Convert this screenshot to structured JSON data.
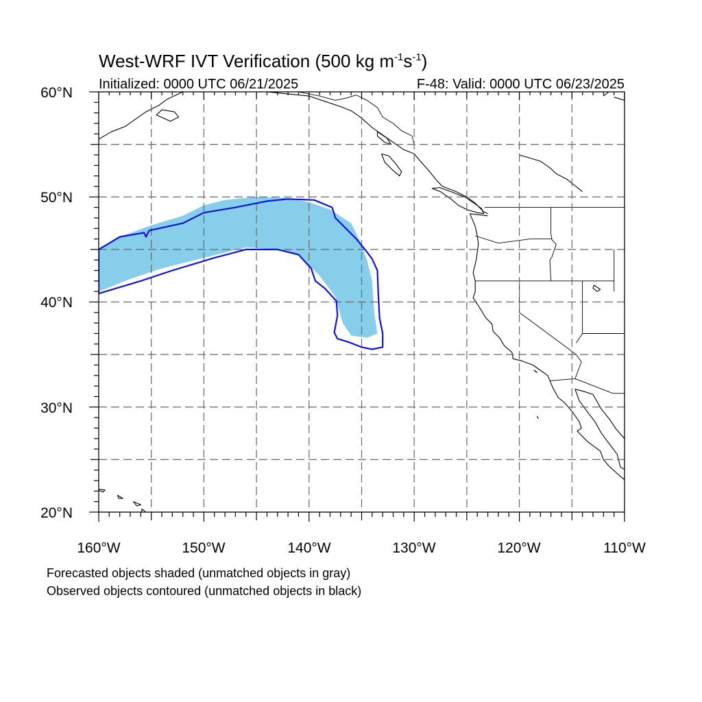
{
  "title": {
    "main": "West-WRF IVT Verification (500 kg m",
    "sup1": "-1",
    "mid": "s",
    "sup2": "-1",
    "end": ")"
  },
  "initialized": "Initialized: 0000 UTC 06/21/2025",
  "valid": "F-48: Valid: 0000 UTC 06/23/2025",
  "lat_labels": [
    "60°N",
    "50°N",
    "40°N",
    "30°N",
    "20°N"
  ],
  "lon_labels": [
    "160°W",
    "150°W",
    "140°W",
    "130°W",
    "120°W",
    "110°W"
  ],
  "map_extent": {
    "lon": [
      -160,
      -110
    ],
    "lat": [
      20,
      60
    ],
    "major_grid_deg": 5
  },
  "notes": [
    "Forecasted objects shaded (unmatched objects in gray)",
    "Observed objects contoured (unmatched objects in black)"
  ],
  "colors": {
    "forecast_fill": "#87ceeb",
    "observed_contour": "#1010e0",
    "coastline": "#000000",
    "grid": "#666666"
  },
  "forecast_object": [
    [
      -160,
      45
    ],
    [
      -158,
      46.2
    ],
    [
      -155,
      47.3
    ],
    [
      -152,
      48.2
    ],
    [
      -150,
      49.2
    ],
    [
      -148,
      49.7
    ],
    [
      -145,
      50
    ],
    [
      -142,
      49.9
    ],
    [
      -140,
      49.5
    ],
    [
      -138,
      48.8
    ],
    [
      -136,
      47.5
    ],
    [
      -135,
      45.5
    ],
    [
      -134.5,
      44
    ],
    [
      -134,
      42
    ],
    [
      -133.8,
      39
    ],
    [
      -133.5,
      37
    ],
    [
      -134.5,
      36.6
    ],
    [
      -136,
      36.8
    ],
    [
      -136.8,
      38
    ],
    [
      -137.5,
      40.5
    ],
    [
      -139,
      42.5
    ],
    [
      -141,
      44.5
    ],
    [
      -143,
      45
    ],
    [
      -146,
      45.2
    ],
    [
      -150,
      44.2
    ],
    [
      -154,
      43.2
    ],
    [
      -157,
      42.2
    ],
    [
      -160,
      41
    ]
  ],
  "observed_object": [
    [
      -160,
      45
    ],
    [
      -158,
      46.2
    ],
    [
      -155.7,
      46.6
    ],
    [
      -155.5,
      46.2
    ],
    [
      -155.2,
      46.8
    ],
    [
      -152,
      47.5
    ],
    [
      -150,
      48.5
    ],
    [
      -147,
      49
    ],
    [
      -144,
      49.6
    ],
    [
      -142,
      49.8
    ],
    [
      -139.5,
      49.7
    ],
    [
      -137.8,
      49
    ],
    [
      -137.5,
      48
    ],
    [
      -136.5,
      47
    ],
    [
      -135.5,
      46
    ],
    [
      -134.6,
      44.9
    ],
    [
      -134,
      44.1
    ],
    [
      -133.5,
      43
    ],
    [
      -133.4,
      40.5
    ],
    [
      -133.3,
      38.5
    ],
    [
      -133,
      37
    ],
    [
      -133,
      35.7
    ],
    [
      -134,
      35.5
    ],
    [
      -135,
      35.7
    ],
    [
      -136.3,
      36.2
    ],
    [
      -137.3,
      36.5
    ],
    [
      -137.6,
      37.1
    ],
    [
      -137.3,
      38.7
    ],
    [
      -137.4,
      40.1
    ],
    [
      -138.5,
      41.3
    ],
    [
      -139.4,
      42
    ],
    [
      -139.8,
      43.2
    ],
    [
      -141,
      44.5
    ],
    [
      -143,
      45
    ],
    [
      -146,
      45
    ],
    [
      -149,
      44.2
    ],
    [
      -153,
      43
    ],
    [
      -156,
      42
    ],
    [
      -160,
      40.8
    ]
  ]
}
